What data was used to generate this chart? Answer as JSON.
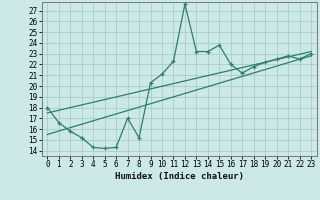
{
  "title": "",
  "xlabel": "Humidex (Indice chaleur)",
  "bg_color": "#cce8e8",
  "grid_color": "#aacccc",
  "line_color": "#2e7d6e",
  "xlim": [
    -0.5,
    23.5
  ],
  "ylim": [
    13.5,
    27.8
  ],
  "xticks": [
    0,
    1,
    2,
    3,
    4,
    5,
    6,
    7,
    8,
    9,
    10,
    11,
    12,
    13,
    14,
    15,
    16,
    17,
    18,
    19,
    20,
    21,
    22,
    23
  ],
  "yticks": [
    14,
    15,
    16,
    17,
    18,
    19,
    20,
    21,
    22,
    23,
    24,
    25,
    26,
    27
  ],
  "main_x": [
    0,
    1,
    2,
    3,
    4,
    5,
    6,
    7,
    8,
    9,
    10,
    11,
    12,
    13,
    14,
    15,
    16,
    17,
    18,
    19,
    20,
    21,
    22,
    23
  ],
  "main_y": [
    18.0,
    16.6,
    15.8,
    15.2,
    14.3,
    14.2,
    14.3,
    17.0,
    15.2,
    20.3,
    21.1,
    22.3,
    27.6,
    23.2,
    23.2,
    23.8,
    22.0,
    21.2,
    21.8,
    22.2,
    22.5,
    22.8,
    22.5,
    23.0
  ],
  "line2_x": [
    0,
    23
  ],
  "line2_y": [
    15.5,
    22.8
  ],
  "line3_x": [
    0,
    23
  ],
  "line3_y": [
    17.5,
    23.2
  ],
  "xlabel_fontsize": 6.5,
  "tick_fontsize": 5.5
}
